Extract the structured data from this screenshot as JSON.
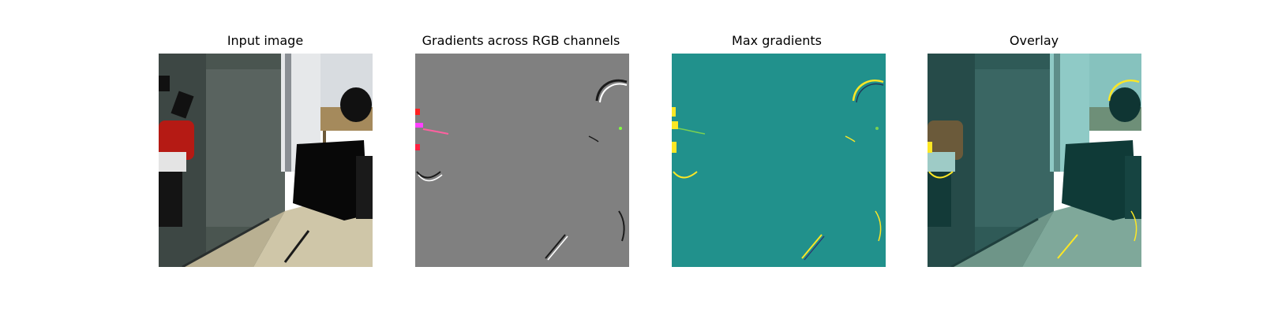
{
  "figure": {
    "panels": [
      {
        "title": "Input image"
      },
      {
        "title": "Gradients across RGB channels"
      },
      {
        "title": "Max gradients"
      },
      {
        "title": "Overlay"
      }
    ],
    "colors": {
      "gradient_gray": "#808080",
      "max_gradient_teal": "#21918c",
      "highlight_yellow": "#fde725",
      "overlay_tint": "#2a8f8a"
    }
  }
}
